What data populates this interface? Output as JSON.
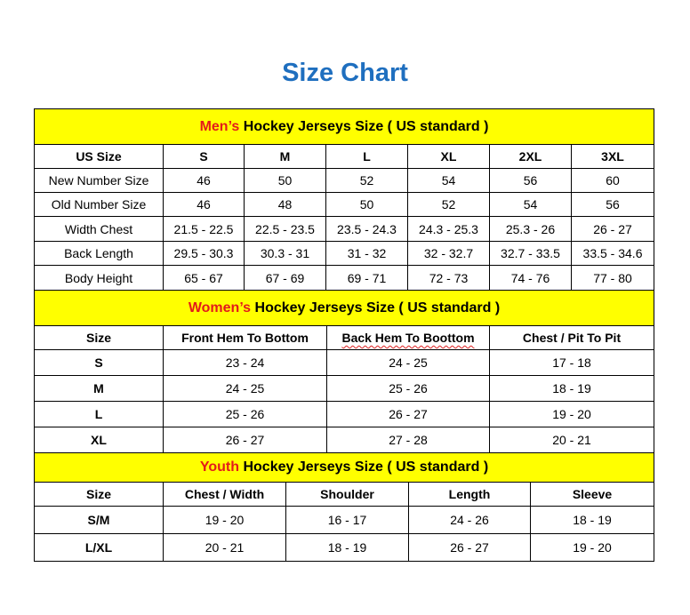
{
  "title": "Size Chart",
  "colors": {
    "title": "#1f6fbf",
    "section_bg": "#ffff00",
    "section_accent": "#e31b1b"
  },
  "men": {
    "heading_accent": "Men’s",
    "heading_rest": " Hockey Jerseys Size ( US standard )",
    "headers": [
      "US Size",
      "S",
      "M",
      "L",
      "XL",
      "2XL",
      "3XL"
    ],
    "rows": [
      [
        "New Number Size",
        "46",
        "50",
        "52",
        "54",
        "56",
        "60"
      ],
      [
        "Old Number Size",
        "46",
        "48",
        "50",
        "52",
        "54",
        "56"
      ],
      [
        "Width Chest",
        "21.5 - 22.5",
        "22.5 - 23.5",
        "23.5 - 24.3",
        "24.3 - 25.3",
        "25.3 - 26",
        "26 - 27"
      ],
      [
        "Back Length",
        "29.5 - 30.3",
        "30.3 - 31",
        "31 - 32",
        "32 - 32.7",
        "32.7 - 33.5",
        "33.5 - 34.6"
      ],
      [
        "Body Height",
        "65 - 67",
        "67 - 69",
        "69 - 71",
        "72 - 73",
        "74 - 76",
        "77 - 80"
      ]
    ]
  },
  "women": {
    "heading_accent": "Women’s",
    "heading_rest": " Hockey Jerseys Size ( US standard )",
    "headers": [
      "Size",
      "Front Hem To Bottom",
      "Back Hem To Boottom",
      "Chest / Pit To Pit"
    ],
    "rows": [
      [
        "S",
        "23 - 24",
        "24 - 25",
        "17 - 18"
      ],
      [
        "M",
        "24 - 25",
        "25 - 26",
        "18 - 19"
      ],
      [
        "L",
        "25 - 26",
        "26 - 27",
        "19 - 20"
      ],
      [
        "XL",
        "26 - 27",
        "27 - 28",
        "20 - 21"
      ]
    ]
  },
  "youth": {
    "heading_accent": "Youth",
    "heading_rest": " Hockey Jerseys Size ( US standard )",
    "headers": [
      "Size",
      "Chest / Width",
      "Shoulder",
      "Length",
      "Sleeve"
    ],
    "rows": [
      [
        "S/M",
        "19 - 20",
        "16 - 17",
        "24 - 26",
        "18 - 19"
      ],
      [
        "L/XL",
        "20 - 21",
        "18 - 19",
        "26 - 27",
        "19 - 20"
      ]
    ]
  }
}
